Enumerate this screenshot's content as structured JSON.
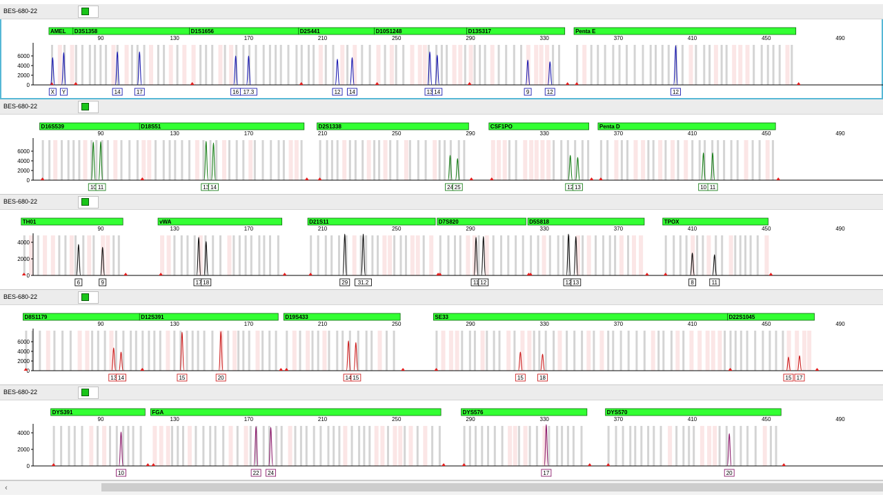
{
  "colors": {
    "dye_blue": "#1b1bb0",
    "dye_green": "#1a7f1a",
    "dye_black": "#111111",
    "dye_red": "#cc1f1f",
    "dye_purple": "#8b1a6b",
    "marker_fill": "#33ff33",
    "bin_gray": "#cccccc",
    "bin_pink": "#fbe3e3",
    "selection": "#56b8d6"
  },
  "scale_ticks": [
    "90",
    "130",
    "170",
    "210",
    "250",
    "290",
    "330",
    "370",
    "410",
    "450",
    "490"
  ],
  "panels": [
    {
      "sample": "BES-680-22",
      "dye": "dye_blue",
      "selected": true,
      "y_ticks": [
        "6000",
        "4000",
        "2000",
        "0"
      ],
      "markers": [
        {
          "name": "AMEL",
          "start": 62,
          "end": 75
        },
        {
          "name": "D3S1358",
          "start": 75,
          "end": 138
        },
        {
          "name": "D1S1656",
          "start": 138,
          "end": 197
        },
        {
          "name": "D2S441",
          "start": 197,
          "end": 238
        },
        {
          "name": "D10S1248",
          "start": 238,
          "end": 288
        },
        {
          "name": "D13S317",
          "start": 288,
          "end": 341
        },
        {
          "name": "Penta E",
          "start": 346,
          "end": 466
        }
      ],
      "peaks": [
        {
          "size": 64,
          "height": 0.66,
          "label": "X"
        },
        {
          "size": 70,
          "height": 0.78,
          "label": "Y"
        },
        {
          "size": 99,
          "height": 0.8,
          "label": "14"
        },
        {
          "size": 111,
          "height": 0.8,
          "label": "17"
        },
        {
          "size": 163,
          "height": 0.7,
          "label": "16"
        },
        {
          "size": 170,
          "height": 0.7,
          "label": "17.3"
        },
        {
          "size": 218,
          "height": 0.62,
          "label": "12"
        },
        {
          "size": 226,
          "height": 0.66,
          "label": "14"
        },
        {
          "size": 268,
          "height": 0.8,
          "label": "13"
        },
        {
          "size": 272,
          "height": 0.72,
          "label": "14"
        },
        {
          "size": 321,
          "height": 0.6,
          "label": "9"
        },
        {
          "size": 333,
          "height": 0.56,
          "label": "12"
        },
        {
          "size": 401,
          "height": 0.95,
          "label": "12"
        }
      ]
    },
    {
      "sample": "BES-680-22",
      "dye": "dye_green",
      "selected": false,
      "y_ticks": [
        "6000",
        "4000",
        "2000",
        "0"
      ],
      "markers": [
        {
          "name": "D16S539",
          "start": 57,
          "end": 111
        },
        {
          "name": "D18S51",
          "start": 111,
          "end": 200
        },
        {
          "name": "D2S1338",
          "start": 207,
          "end": 289
        },
        {
          "name": "CSF1PO",
          "start": 300,
          "end": 354
        },
        {
          "name": "Penta D",
          "start": 359,
          "end": 455
        }
      ],
      "peaks": [
        {
          "size": 86,
          "height": 0.92,
          "label": "10"
        },
        {
          "size": 90,
          "height": 0.93,
          "label": "11"
        },
        {
          "size": 147,
          "height": 0.94,
          "label": "13"
        },
        {
          "size": 151,
          "height": 0.9,
          "label": "14"
        },
        {
          "size": 279,
          "height": 0.6,
          "label": "24"
        },
        {
          "size": 283,
          "height": 0.52,
          "label": "25"
        },
        {
          "size": 344,
          "height": 0.6,
          "label": "12"
        },
        {
          "size": 348,
          "height": 0.55,
          "label": "13"
        },
        {
          "size": 416,
          "height": 0.66,
          "label": "10"
        },
        {
          "size": 421,
          "height": 0.66,
          "label": "11"
        }
      ]
    },
    {
      "sample": "BES-680-22",
      "dye": "dye_black",
      "selected": false,
      "y_ticks": [
        "4000",
        "2000",
        "0"
      ],
      "markers": [
        {
          "name": "TH01",
          "start": 47,
          "end": 102
        },
        {
          "name": "vWA",
          "start": 121,
          "end": 188
        },
        {
          "name": "D21S11",
          "start": 202,
          "end": 271
        },
        {
          "name": "D7S820",
          "start": 272,
          "end": 320
        },
        {
          "name": "D5S818",
          "start": 321,
          "end": 384
        },
        {
          "name": "TPOX",
          "start": 394,
          "end": 451
        }
      ],
      "peaks": [
        {
          "size": 78,
          "height": 0.75,
          "label": "6"
        },
        {
          "size": 91,
          "height": 0.68,
          "label": "9"
        },
        {
          "size": 143,
          "height": 0.92,
          "label": "17"
        },
        {
          "size": 147,
          "height": 0.82,
          "label": "18"
        },
        {
          "size": 222,
          "height": 1.0,
          "label": "29"
        },
        {
          "size": 232,
          "height": 1.0,
          "label": "31.2"
        },
        {
          "size": 293,
          "height": 0.92,
          "label": "11"
        },
        {
          "size": 297,
          "height": 0.94,
          "label": "12"
        },
        {
          "size": 343,
          "height": 1.0,
          "label": "12"
        },
        {
          "size": 347,
          "height": 0.94,
          "label": "13"
        },
        {
          "size": 410,
          "height": 0.54,
          "label": "8"
        },
        {
          "size": 422,
          "height": 0.5,
          "label": "11"
        }
      ]
    },
    {
      "sample": "BES-680-22",
      "dye": "dye_red",
      "selected": false,
      "y_ticks": [
        "6000",
        "4000",
        "2000",
        "0"
      ],
      "markers": [
        {
          "name": "D8S1179",
          "start": 48,
          "end": 111
        },
        {
          "name": "D12S391",
          "start": 111,
          "end": 186
        },
        {
          "name": "D19S433",
          "start": 189,
          "end": 252
        },
        {
          "name": "SE33",
          "start": 270,
          "end": 429
        },
        {
          "name": "D22S1045",
          "start": 429,
          "end": 476
        }
      ],
      "peaks": [
        {
          "size": 97,
          "height": 0.55,
          "label": "13"
        },
        {
          "size": 101,
          "height": 0.45,
          "label": "14"
        },
        {
          "size": 134,
          "height": 0.93,
          "label": "15"
        },
        {
          "size": 155,
          "height": 0.95,
          "label": "20"
        },
        {
          "size": 224,
          "height": 0.72,
          "label": "14"
        },
        {
          "size": 228,
          "height": 0.68,
          "label": "15"
        },
        {
          "size": 317,
          "height": 0.45,
          "label": "15"
        },
        {
          "size": 329,
          "height": 0.4,
          "label": "18"
        },
        {
          "size": 462,
          "height": 0.33,
          "label": "15"
        },
        {
          "size": 468,
          "height": 0.36,
          "label": "17"
        }
      ]
    },
    {
      "sample": "BES-680-22",
      "dye": "dye_purple",
      "selected": false,
      "y_ticks": [
        "4000",
        "2000",
        "0"
      ],
      "markers": [
        {
          "name": "DYS391",
          "start": 63,
          "end": 114
        },
        {
          "name": "FGA",
          "start": 117,
          "end": 274
        },
        {
          "name": "DYS576",
          "start": 285,
          "end": 353
        },
        {
          "name": "DYS570",
          "start": 363,
          "end": 458
        }
      ],
      "peaks": [
        {
          "size": 101,
          "height": 0.82,
          "label": "10"
        },
        {
          "size": 174,
          "height": 0.95,
          "label": "22"
        },
        {
          "size": 182,
          "height": 0.93,
          "label": "24"
        },
        {
          "size": 331,
          "height": 1.0,
          "label": "17"
        },
        {
          "size": 430,
          "height": 0.78,
          "label": "20"
        }
      ]
    }
  ]
}
